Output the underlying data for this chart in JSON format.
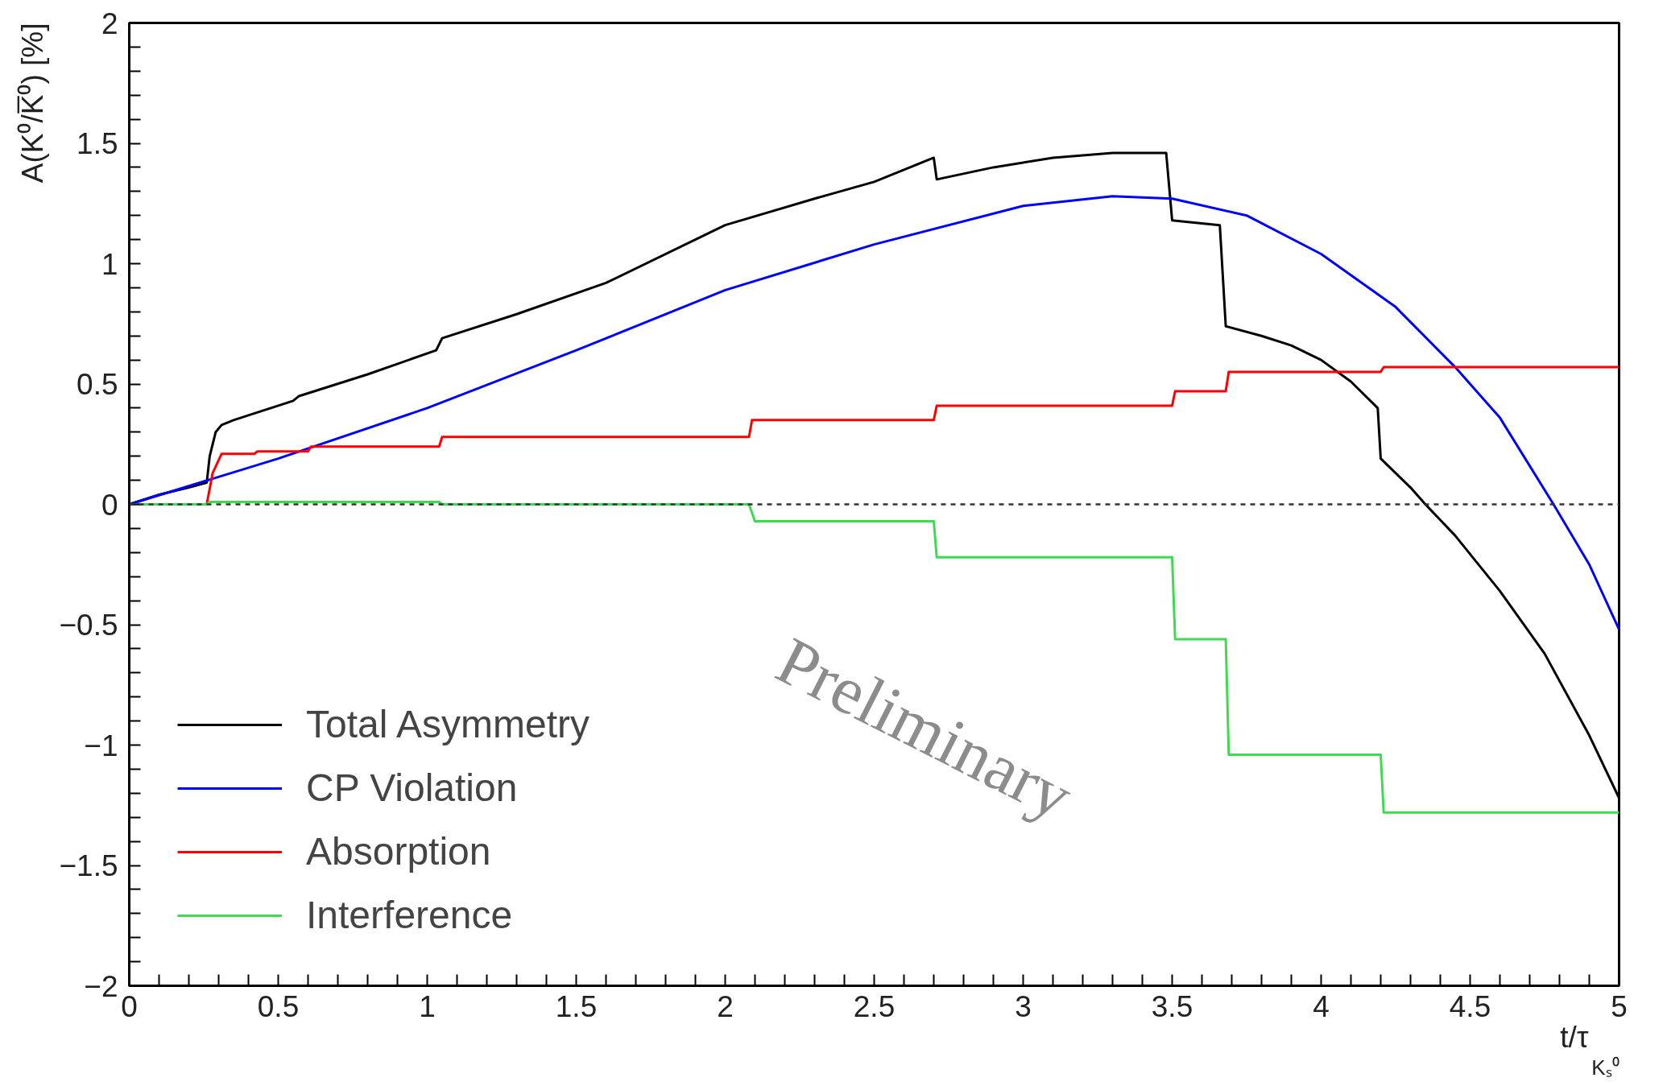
{
  "chart_data": {
    "type": "line",
    "xlabel": "t/τ$_{Kₛ⁰}$",
    "ylabel": "A(K⁰/K̅⁰) [%]",
    "annotations": [
      "Preliminary"
    ],
    "xlim": [
      0,
      5
    ],
    "ylim": [
      -2,
      2
    ],
    "xticks": [
      0,
      {
        "value": 0.1,
        "label": null
      },
      {
        "value": 0.2,
        "label": null
      },
      {
        "value": 0.3,
        "label": null
      },
      {
        "value": 0.4,
        "label": null
      },
      0.5,
      {
        "value": 0.6,
        "label": null
      },
      {
        "value": 0.7,
        "label": null
      },
      {
        "value": 0.8,
        "label": null
      },
      {
        "value": 0.9,
        "label": null
      },
      1,
      {
        "value": 1.1,
        "label": null
      },
      {
        "value": 1.2,
        "label": null
      },
      {
        "value": 1.3,
        "label": null
      },
      {
        "value": 1.4,
        "label": null
      },
      1.5,
      {
        "value": 1.6,
        "label": null
      },
      {
        "value": 1.7,
        "label": null
      },
      {
        "value": 1.8,
        "label": null
      },
      {
        "value": 1.9,
        "label": null
      },
      2,
      {
        "value": 2.1,
        "label": null
      },
      {
        "value": 2.2,
        "label": null
      },
      {
        "value": 2.3,
        "label": null
      },
      {
        "value": 2.4,
        "label": null
      },
      2.5,
      {
        "value": 2.6,
        "label": null
      },
      {
        "value": 2.7,
        "label": null
      },
      {
        "value": 2.8,
        "label": null
      },
      {
        "value": 2.9,
        "label": null
      },
      3,
      {
        "value": 3.1,
        "label": null
      },
      {
        "value": 3.2,
        "label": null
      },
      {
        "value": 3.3,
        "label": null
      },
      {
        "value": 3.4,
        "label": null
      },
      3.5,
      {
        "value": 3.6,
        "label": null
      },
      {
        "value": 3.7,
        "label": null
      },
      {
        "value": 3.8,
        "label": null
      },
      {
        "value": 3.9,
        "label": null
      },
      4,
      {
        "value": 4.1,
        "label": null
      },
      {
        "value": 4.2,
        "label": null
      },
      {
        "value": 4.3,
        "label": null
      },
      {
        "value": 4.4,
        "label": null
      },
      4.5,
      {
        "value": 4.6,
        "label": null
      },
      {
        "value": 4.7,
        "label": null
      },
      {
        "value": 4.8,
        "label": null
      },
      {
        "value": 4.9,
        "label": null
      },
      5
    ],
    "yticks": [
      {
        "value": -2,
        "label": "−2"
      },
      {
        "value": -1.9,
        "label": null
      },
      {
        "value": -1.8,
        "label": null
      },
      {
        "value": -1.7,
        "label": null
      },
      {
        "value": -1.6,
        "label": null
      },
      {
        "value": -1.5,
        "label": "−1.5"
      },
      {
        "value": -1.4,
        "label": null
      },
      {
        "value": -1.3,
        "label": null
      },
      {
        "value": -1.2,
        "label": null
      },
      {
        "value": -1.1,
        "label": null
      },
      {
        "value": -1,
        "label": "−1"
      },
      {
        "value": -0.9,
        "label": null
      },
      {
        "value": -0.8,
        "label": null
      },
      {
        "value": -0.7,
        "label": null
      },
      {
        "value": -0.6,
        "label": null
      },
      {
        "value": -0.5,
        "label": "−0.5"
      },
      {
        "value": -0.4,
        "label": null
      },
      {
        "value": -0.3,
        "label": null
      },
      {
        "value": -0.2,
        "label": null
      },
      {
        "value": -0.1,
        "label": null
      },
      0,
      {
        "value": 0.1,
        "label": null
      },
      {
        "value": 0.2,
        "label": null
      },
      {
        "value": 0.3,
        "label": null
      },
      {
        "value": 0.4,
        "label": null
      },
      0.5,
      {
        "value": 0.6,
        "label": null
      },
      {
        "value": 0.7,
        "label": null
      },
      {
        "value": 0.8,
        "label": null
      },
      {
        "value": 0.9,
        "label": null
      },
      1,
      {
        "value": 1.1,
        "label": null
      },
      {
        "value": 1.2,
        "label": null
      },
      {
        "value": 1.3,
        "label": null
      },
      {
        "value": 1.4,
        "label": null
      },
      1.5,
      {
        "value": 1.6,
        "label": null
      },
      {
        "value": 1.7,
        "label": null
      },
      {
        "value": 1.8,
        "label": null
      },
      {
        "value": 1.9,
        "label": null
      },
      2
    ],
    "grid": false,
    "legend": "bottom left",
    "marker": "none",
    "line_style": "solid",
    "ref_lines": [
      {
        "axis": "y",
        "value": 0,
        "color": "#333333",
        "line_style": "dashed"
      }
    ],
    "series": [
      {
        "name": "Total Asymmetry",
        "color": "#000000",
        "x": [
          0,
          0.1,
          0.2,
          0.26,
          0.27,
          0.29,
          0.31,
          0.35,
          0.45,
          0.55,
          0.57,
          0.8,
          1.03,
          1.05,
          1.3,
          1.6,
          2.0,
          2.3,
          2.5,
          2.7,
          2.71,
          2.9,
          3.1,
          3.3,
          3.48,
          3.5,
          3.66,
          3.68,
          3.8,
          3.9,
          4.0,
          4.1,
          4.19,
          4.2,
          4.3,
          4.35,
          4.45,
          4.6,
          4.75,
          4.9,
          5.0
        ],
        "values": [
          0,
          0.04,
          0.07,
          0.09,
          0.2,
          0.3,
          0.33,
          0.35,
          0.39,
          0.43,
          0.45,
          0.54,
          0.64,
          0.69,
          0.79,
          0.92,
          1.16,
          1.27,
          1.34,
          1.44,
          1.35,
          1.4,
          1.44,
          1.46,
          1.46,
          1.18,
          1.16,
          0.74,
          0.7,
          0.66,
          0.6,
          0.51,
          0.4,
          0.19,
          0.07,
          0.0,
          -0.13,
          -0.36,
          -0.62,
          -0.96,
          -1.22
        ]
      },
      {
        "name": "CP Violation",
        "color": "#0000ff",
        "x": [
          0,
          0.5,
          1,
          1.5,
          2,
          2.5,
          3,
          3.3,
          3.5,
          3.75,
          4,
          4.25,
          4.45,
          4.6,
          4.78,
          4.9,
          5
        ],
        "values": [
          0,
          0.19,
          0.4,
          0.64,
          0.89,
          1.08,
          1.24,
          1.28,
          1.27,
          1.2,
          1.04,
          0.82,
          0.57,
          0.36,
          0,
          -0.25,
          -0.52
        ]
      },
      {
        "name": "Absorption",
        "color": "#ff0000",
        "x": [
          0,
          0.26,
          0.28,
          0.31,
          0.42,
          0.43,
          0.6,
          0.61,
          1.04,
          1.05,
          2.08,
          2.09,
          2.7,
          2.71,
          3.5,
          3.51,
          3.68,
          3.69,
          4.2,
          4.21,
          5
        ],
        "values": [
          0,
          0,
          0.13,
          0.21,
          0.21,
          0.22,
          0.22,
          0.24,
          0.24,
          0.28,
          0.28,
          0.35,
          0.35,
          0.41,
          0.41,
          0.47,
          0.47,
          0.55,
          0.55,
          0.57,
          0.57
        ]
      },
      {
        "name": "Interference",
        "color": "#3ddc50",
        "x": [
          0,
          0.26,
          0.27,
          1.04,
          1.05,
          2.08,
          2.1,
          2.7,
          2.71,
          3.5,
          3.51,
          3.68,
          3.69,
          4.2,
          4.21,
          5
        ],
        "values": [
          0,
          0,
          0.01,
          0.01,
          0,
          0,
          -0.07,
          -0.07,
          -0.22,
          -0.22,
          -0.56,
          -0.56,
          -1.04,
          -1.04,
          -1.28,
          -1.28
        ]
      }
    ]
  }
}
